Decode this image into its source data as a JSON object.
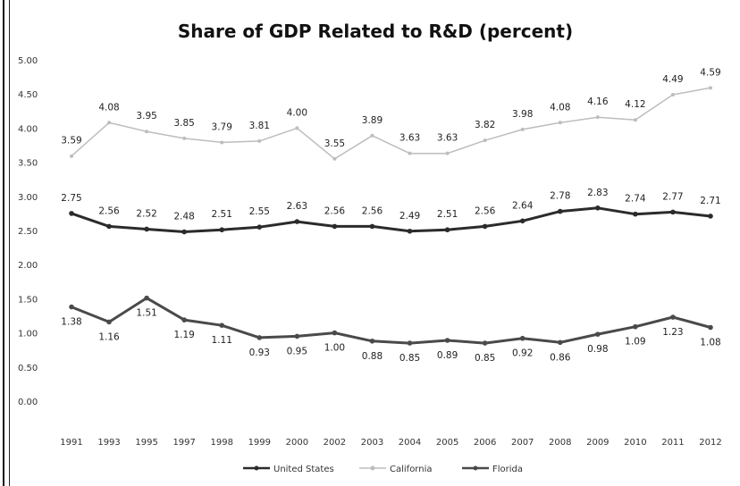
{
  "chart_data": {
    "type": "line",
    "title": "Share of GDP Related to R&D (percent)",
    "xlabel": "",
    "ylabel": "",
    "ylim": [
      0,
      5
    ],
    "yticks": [
      "0.00",
      "0.50",
      "1.00",
      "1.50",
      "2.00",
      "2.50",
      "3.00",
      "3.50",
      "4.00",
      "4.50",
      "5.00"
    ],
    "categories": [
      "1991",
      "1993",
      "1995",
      "1997",
      "1998",
      "1999",
      "2000",
      "2002",
      "2003",
      "2004",
      "2005",
      "2006",
      "2007",
      "2008",
      "2009",
      "2010",
      "2011",
      "2012"
    ],
    "grid": false,
    "legend_position": "bottom",
    "series": [
      {
        "name": "United States",
        "color": "#2b2b2b",
        "values": [
          2.75,
          2.56,
          2.52,
          2.48,
          2.51,
          2.55,
          2.63,
          2.56,
          2.56,
          2.49,
          2.51,
          2.56,
          2.64,
          2.78,
          2.83,
          2.74,
          2.77,
          2.71
        ],
        "labels": [
          "2.75",
          "2.56",
          "2.52",
          "2.48",
          "2.51",
          "2.55",
          "2.63",
          "2.56",
          "2.56",
          "2.49",
          "2.51",
          "2.56",
          "2.64",
          "2.78",
          "2.83",
          "2.74",
          "2.77",
          "2.71"
        ]
      },
      {
        "name": "California",
        "color": "#bdbdbd",
        "values": [
          3.59,
          4.08,
          3.95,
          3.85,
          3.79,
          3.81,
          4.0,
          3.55,
          3.89,
          3.63,
          3.63,
          3.82,
          3.98,
          4.08,
          4.16,
          4.12,
          4.49,
          4.59
        ],
        "labels": [
          "3.59",
          "4.08",
          "3.95",
          "3.85",
          "3.79",
          "3.81",
          "4.00",
          "3.55",
          "3.89",
          "3.63",
          "3.63",
          "3.82",
          "3.98",
          "4.08",
          "4.16",
          "4.12",
          "4.49",
          "4.59"
        ]
      },
      {
        "name": "Florida",
        "color": "#4a4a4a",
        "values": [
          1.38,
          1.16,
          1.51,
          1.19,
          1.11,
          0.93,
          0.95,
          1.0,
          0.88,
          0.85,
          0.89,
          0.85,
          0.92,
          0.86,
          0.98,
          1.09,
          1.23,
          1.08
        ],
        "labels": [
          "1.38",
          "1.16",
          "1.51",
          "1.19",
          "1.11",
          "0.93",
          "0.95",
          "1.00",
          "0.88",
          "0.85",
          "0.89",
          "0.85",
          "0.92",
          "0.86",
          "0.98",
          "1.09",
          "1.23",
          "1.08"
        ]
      }
    ]
  }
}
